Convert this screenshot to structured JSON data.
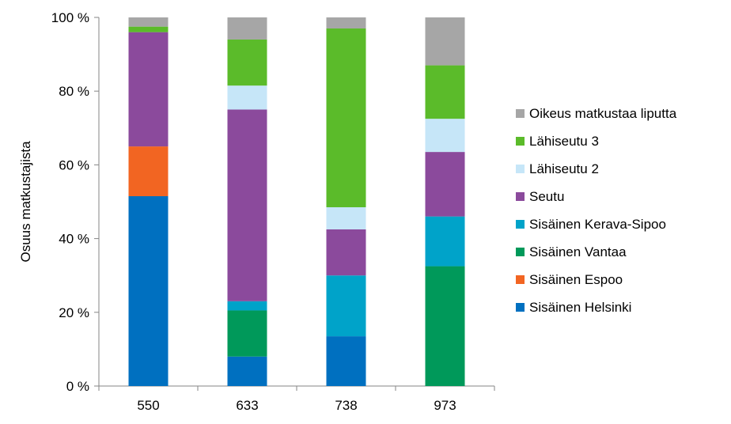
{
  "chart_data": {
    "type": "bar",
    "stacked": true,
    "percent_stacked": true,
    "title": "",
    "xlabel": "",
    "ylabel": "Osuus matkustajista",
    "ylim": [
      0,
      100
    ],
    "yticks": [
      "0 %",
      "20 %",
      "40 %",
      "60 %",
      "80 %",
      "100 %"
    ],
    "categories": [
      "550",
      "633",
      "738",
      "973"
    ],
    "legend_position": "right",
    "grid": false,
    "series": [
      {
        "name": "Sisäinen Helsinki",
        "color": "#0070C0",
        "values": [
          51.5,
          8.0,
          13.5,
          0
        ]
      },
      {
        "name": "Sisäinen Espoo",
        "color": "#F26522",
        "values": [
          13.5,
          0,
          0,
          0
        ]
      },
      {
        "name": "Sisäinen Vantaa",
        "color": "#00995A",
        "values": [
          0,
          12.5,
          0,
          32.5
        ]
      },
      {
        "name": "Sisäinen Kerava-Sipoo",
        "color": "#00A3C9",
        "values": [
          0,
          2.5,
          16.5,
          13.5
        ]
      },
      {
        "name": "Seutu",
        "color": "#8B4A9C",
        "values": [
          31.0,
          52.0,
          12.5,
          17.5
        ]
      },
      {
        "name": "Lähiseutu 2",
        "color": "#C6E6F8",
        "values": [
          0,
          6.5,
          6.0,
          9.0
        ]
      },
      {
        "name": "Lähiseutu 3",
        "color": "#5BBB2A",
        "values": [
          1.5,
          12.5,
          48.5,
          14.5
        ]
      },
      {
        "name": "Oikeus matkustaa liputta",
        "color": "#A6A6A6",
        "values": [
          2.5,
          6.0,
          3.0,
          13.0
        ]
      }
    ]
  }
}
